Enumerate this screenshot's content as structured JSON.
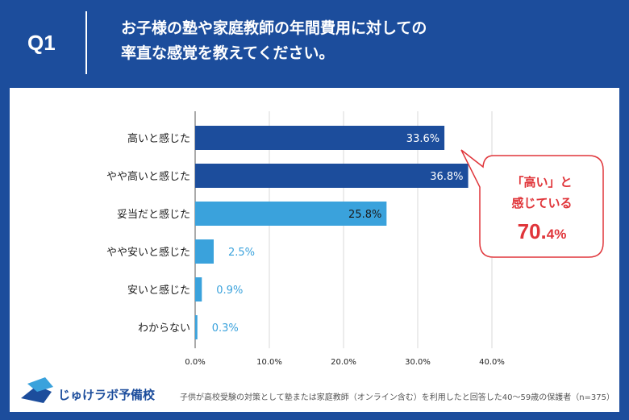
{
  "header": {
    "q_label": "Q1",
    "question_line1": "お子様の塾や家庭教師の年間費用に対しての",
    "question_line2": "率直な感覚を教えてください。"
  },
  "chart_data": {
    "type": "bar",
    "orientation": "horizontal",
    "categories": [
      "高いと感じた",
      "やや高いと感じた",
      "妥当だと感じた",
      "やや安いと感じた",
      "安いと感じた",
      "わからない"
    ],
    "values": [
      33.6,
      36.8,
      25.8,
      2.5,
      0.9,
      0.3
    ],
    "value_labels": [
      "33.6%",
      "36.8%",
      "25.8%",
      "2.5%",
      "0.9%",
      "0.3%"
    ],
    "xlim": [
      0,
      40
    ],
    "ticks": [
      0,
      10,
      20,
      30,
      40
    ],
    "tick_labels": [
      "0.0%",
      "10.0%",
      "20.0%",
      "30.0%",
      "40.0%"
    ],
    "grid": true,
    "colors": [
      "#1c4d9c",
      "#1c4d9c",
      "#3aa2dc",
      "#3aa2dc",
      "#3aa2dc",
      "#3aa2dc"
    ]
  },
  "callout": {
    "line1": "「高い」と",
    "line2": "感じている",
    "value": "70.",
    "value_small": "4%"
  },
  "logo": {
    "text": "じゅけラボ予備校"
  },
  "footnote": "子供が高校受験の対策として塾または家庭教師（オンライン含む）を利用したと回答した40〜59歳の保護者（n=375）",
  "colors": {
    "brand": "#1c4d9c",
    "accent": "#3aa2dc",
    "callout": "#e0353a"
  }
}
